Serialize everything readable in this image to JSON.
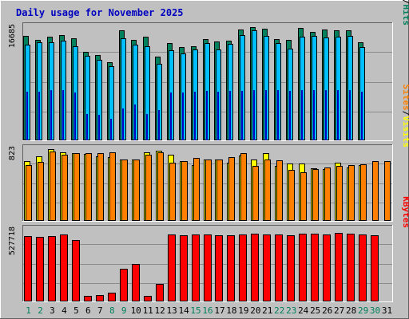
{
  "chart_data": {
    "type": "bar",
    "title": "Daily usage for November 2025",
    "categories": [
      "1",
      "2",
      "3",
      "4",
      "5",
      "6",
      "7",
      "8",
      "9",
      "10",
      "11",
      "12",
      "13",
      "14",
      "15",
      "16",
      "17",
      "18",
      "19",
      "20",
      "21",
      "22",
      "23",
      "24",
      "25",
      "26",
      "27",
      "28",
      "29",
      "30",
      "31"
    ],
    "weekend_days": [
      "1",
      "2",
      "8",
      "9",
      "15",
      "16",
      "22",
      "23",
      "29",
      "30"
    ],
    "colors": {
      "hits": "#00805c",
      "files": "#00c0ff",
      "pages": "#0000c0",
      "visits": "#ffff00",
      "sites": "#ff8000",
      "kbytes": "#ff0000",
      "title": "#0000c0",
      "weekday_label": "#000000",
      "weekend_label": "#00805c",
      "background": "#c0c0c0"
    },
    "panels": [
      {
        "id": "hits_files_pages",
        "ymax_label": "16685",
        "ylim": [
          0,
          16685
        ],
        "labels": [
          "Pages",
          "/",
          "Files",
          "/",
          "Hits"
        ],
        "label_colors": [
          "#00c0ff",
          "#000000",
          "#0000c0",
          "#000000",
          "#00805c"
        ],
        "series": [
          {
            "name": "Hits",
            "color": "#00805c",
            "values": [
              15300,
              14700,
              15200,
              15400,
              14900,
              13000,
              12500,
              11400,
              16100,
              14700,
              15200,
              12200,
              14200,
              13700,
              13800,
              14800,
              14500,
              14600,
              16200,
              16600,
              16300,
              14800,
              14700,
              16500,
              15900,
              16200,
              16100,
              16100,
              14300,
              0,
              0
            ]
          },
          {
            "name": "Files",
            "color": "#00c0ff",
            "values": [
              14000,
              14400,
              14400,
              14600,
              13800,
              12400,
              11800,
              10900,
              14900,
              14000,
              13800,
              11200,
              13200,
              12700,
              13300,
              14200,
              13300,
              14100,
              15400,
              16100,
              15300,
              14200,
              13400,
              15200,
              15300,
              15100,
              15200,
              15300,
              13600,
              0,
              0
            ]
          },
          {
            "name": "Pages",
            "color": "#0000c0",
            "values": [
              7100,
              7100,
              7300,
              7400,
              7000,
              3800,
              3700,
              3100,
              4700,
              5300,
              3800,
              4400,
              7000,
              7000,
              7100,
              7200,
              7100,
              7200,
              7200,
              7400,
              7400,
              7300,
              7200,
              7400,
              7300,
              7300,
              7400,
              7300,
              7100,
              0,
              0
            ]
          }
        ]
      },
      {
        "id": "visits_sites",
        "ymax_label": "823",
        "ylim": [
          0,
          823
        ],
        "labels": [
          "Sites",
          "/",
          "Visits"
        ],
        "label_colors": [
          "#ff8000",
          "#000000",
          "#ffff00"
        ],
        "series": [
          {
            "name": "Visits",
            "color": "#ffff00",
            "values": [
              680,
              730,
              810,
              780,
              770,
              760,
              730,
              720,
              700,
              700,
              780,
              800,
              750,
              680,
              630,
              700,
              700,
              660,
              740,
              700,
              770,
              620,
              650,
              650,
              600,
              590,
              660,
              610,
              630,
              0,
              0
            ]
          },
          {
            "name": "Sites",
            "color": "#ff8000",
            "values": [
              630,
              670,
              790,
              750,
              770,
              770,
              770,
              780,
              700,
              700,
              750,
              780,
              660,
              680,
              710,
              700,
              700,
              720,
              770,
              620,
              700,
              690,
              580,
              550,
              590,
              610,
              620,
              630,
              640,
              680,
              680
            ]
          }
        ]
      },
      {
        "id": "kbytes",
        "ymax_label": "527718",
        "ylim": [
          0,
          527718
        ],
        "labels": [
          "KBytes"
        ],
        "label_colors": [
          "#ff0000"
        ],
        "series": [
          {
            "name": "KBytes",
            "color": "#ff0000",
            "values": [
              478000,
              470000,
              475000,
              485000,
              445000,
              43000,
              45000,
              65000,
              235000,
              270000,
              42000,
              130000,
              490000,
              480000,
              490000,
              485000,
              482000,
              482000,
              490000,
              492000,
              490000,
              490000,
              482000,
              495000,
              492000,
              490000,
              500000,
              495000,
              490000,
              480000,
              0
            ]
          }
        ]
      }
    ]
  }
}
